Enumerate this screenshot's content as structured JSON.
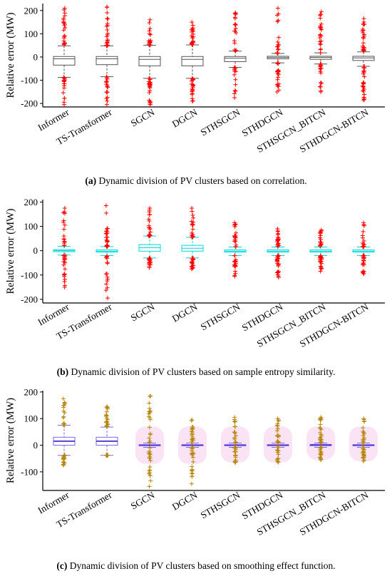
{
  "categories": [
    "Informer",
    "TS-Transformer",
    "SGCN",
    "DGCN",
    "STHSGCN",
    "STHDGCN",
    "STHSGCN_BITCN",
    "STHDGCN-BITCN"
  ],
  "colors": {
    "outlier_red": "#ff0000",
    "outlier_brown": "#b8860b",
    "box_black": "#555555",
    "box_cyan": "#00d8d8",
    "box_purple": "#7b68ee",
    "median_purple": "#5a3fd0",
    "halo_pink": "#f7d9f2",
    "axis": "#000000"
  },
  "chart_data": [
    {
      "id": "a",
      "type": "box",
      "ylabel": "Relative error (MW)",
      "ylim": [
        -215,
        230
      ],
      "yticks": [
        -200,
        -100,
        0,
        100,
        200
      ],
      "caption_letter": "(a)",
      "caption_text": " Dynamic division of PV clusters based on correlation.",
      "box_color": "#555555",
      "outlier_color": "#ff0000",
      "categories": [
        "Informer",
        "TS-Transformer",
        "SGCN",
        "DGCN",
        "STHSGCN",
        "STHDGCN",
        "STHSGCN_BITCN",
        "STHDGCN-BITCN"
      ],
      "boxes": [
        {
          "q1": -35,
          "median": -8,
          "q3": 2,
          "whisker_low": -88,
          "whisker_high": 48,
          "outlier_low": -205,
          "outlier_high": 210
        },
        {
          "q1": -33,
          "median": -8,
          "q3": 2,
          "whisker_low": -85,
          "whisker_high": 48,
          "outlier_low": -205,
          "outlier_high": 215
        },
        {
          "q1": -38,
          "median": -10,
          "q3": 2,
          "whisker_low": -92,
          "whisker_high": 50,
          "outlier_low": -205,
          "outlier_high": 160
        },
        {
          "q1": -38,
          "median": -10,
          "q3": 2,
          "whisker_low": -92,
          "whisker_high": 52,
          "outlier_low": -190,
          "outlier_high": 150
        },
        {
          "q1": -20,
          "median": -5,
          "q3": 2,
          "whisker_low": -45,
          "whisker_high": 25,
          "outlier_low": -175,
          "outlier_high": 190
        },
        {
          "q1": -8,
          "median": -2,
          "q3": 3,
          "whisker_low": -25,
          "whisker_high": 15,
          "outlier_low": -150,
          "outlier_high": 210
        },
        {
          "q1": -10,
          "median": -2,
          "q3": 3,
          "whisker_low": -30,
          "whisker_high": 18,
          "outlier_low": -150,
          "outlier_high": 195
        },
        {
          "q1": -15,
          "median": -4,
          "q3": 3,
          "whisker_low": -40,
          "whisker_high": 22,
          "outlier_low": -185,
          "outlier_high": 165
        }
      ]
    },
    {
      "id": "b",
      "type": "box",
      "ylabel": "Relative error (MW)",
      "ylim": [
        -215,
        210
      ],
      "yticks": [
        -200,
        -100,
        0,
        100,
        200
      ],
      "caption_letter": "(b)",
      "caption_text": " Dynamic division of PV clusters based on sample entropy similarity.",
      "box_color": "#00d8d8",
      "outlier_color": "#ff0000",
      "categories": [
        "Informer",
        "TS-Transformer",
        "SGCN",
        "DGCN",
        "STHSGCN",
        "STHDGCN",
        "STHSGCN_BITCN",
        "STHDGCN-BITCN"
      ],
      "boxes": [
        {
          "q1": -4,
          "median": 0,
          "q3": 4,
          "whisker_low": -18,
          "whisker_high": 18,
          "outlier_low": -150,
          "outlier_high": 175
        },
        {
          "q1": -6,
          "median": -2,
          "q3": 3,
          "whisker_low": -20,
          "whisker_high": 17,
          "outlier_low": -195,
          "outlier_high": 185
        },
        {
          "q1": -2,
          "median": 12,
          "q3": 25,
          "whisker_low": -30,
          "whisker_high": 60,
          "outlier_low": -70,
          "outlier_high": 175
        },
        {
          "q1": -2,
          "median": 10,
          "q3": 22,
          "whisker_low": -30,
          "whisker_high": 55,
          "outlier_low": -75,
          "outlier_high": 175
        },
        {
          "q1": -6,
          "median": -2,
          "q3": 3,
          "whisker_low": -20,
          "whisker_high": 15,
          "outlier_low": -105,
          "outlier_high": 115
        },
        {
          "q1": -6,
          "median": -2,
          "q3": 3,
          "whisker_low": -20,
          "whisker_high": 15,
          "outlier_low": -110,
          "outlier_high": 90
        },
        {
          "q1": -6,
          "median": -2,
          "q3": 3,
          "whisker_low": -20,
          "whisker_high": 15,
          "outlier_low": -85,
          "outlier_high": 85
        },
        {
          "q1": -6,
          "median": -2,
          "q3": 3,
          "whisker_low": -20,
          "whisker_high": 15,
          "outlier_low": -95,
          "outlier_high": 115
        }
      ]
    },
    {
      "id": "c",
      "type": "box",
      "ylabel": "Relative error (MW)",
      "ylim": [
        -170,
        205
      ],
      "yticks": [
        -100,
        0,
        100,
        200
      ],
      "caption_letter": "(c)",
      "caption_text": " Dynamic division of PV clusters based on smoothing effect function.",
      "box_color": "#7b68ee",
      "outlier_color": "#b8860b",
      "categories": [
        "Informer",
        "TS-Transformer",
        "SGCN",
        "DGCN",
        "STHSGCN",
        "STHDGCN",
        "STHSGCN_BITCN",
        "STHDGCN-BITCN"
      ],
      "boxes": [
        {
          "q1": 0,
          "median": 15,
          "q3": 30,
          "whisker_low": -38,
          "whisker_high": 75,
          "outlier_low": -75,
          "outlier_high": 175
        },
        {
          "q1": 0,
          "median": 15,
          "q3": 30,
          "whisker_low": -38,
          "whisker_high": 68,
          "outlier_low": -38,
          "outlier_high": 145,
          "halo": false
        },
        {
          "q1": -2,
          "median": 0,
          "q3": 2,
          "whisker_low": -8,
          "whisker_high": 8,
          "outlier_low": -155,
          "outlier_high": 185,
          "halo": true
        },
        {
          "q1": -2,
          "median": 0,
          "q3": 2,
          "whisker_low": -8,
          "whisker_high": 8,
          "outlier_low": -145,
          "outlier_high": 95,
          "halo": true
        },
        {
          "q1": -2,
          "median": 0,
          "q3": 2,
          "whisker_low": -8,
          "whisker_high": 8,
          "outlier_low": -65,
          "outlier_high": 105,
          "halo": true
        },
        {
          "q1": -2,
          "median": 0,
          "q3": 2,
          "whisker_low": -8,
          "whisker_high": 8,
          "outlier_low": -65,
          "outlier_high": 100,
          "halo": true
        },
        {
          "q1": -2,
          "median": 1,
          "q3": 3,
          "whisker_low": -8,
          "whisker_high": 8,
          "outlier_low": -55,
          "outlier_high": 105,
          "halo": true
        },
        {
          "q1": -2,
          "median": 0,
          "q3": 2,
          "whisker_low": -8,
          "whisker_high": 8,
          "outlier_low": -60,
          "outlier_high": 100,
          "halo": true
        }
      ]
    }
  ]
}
